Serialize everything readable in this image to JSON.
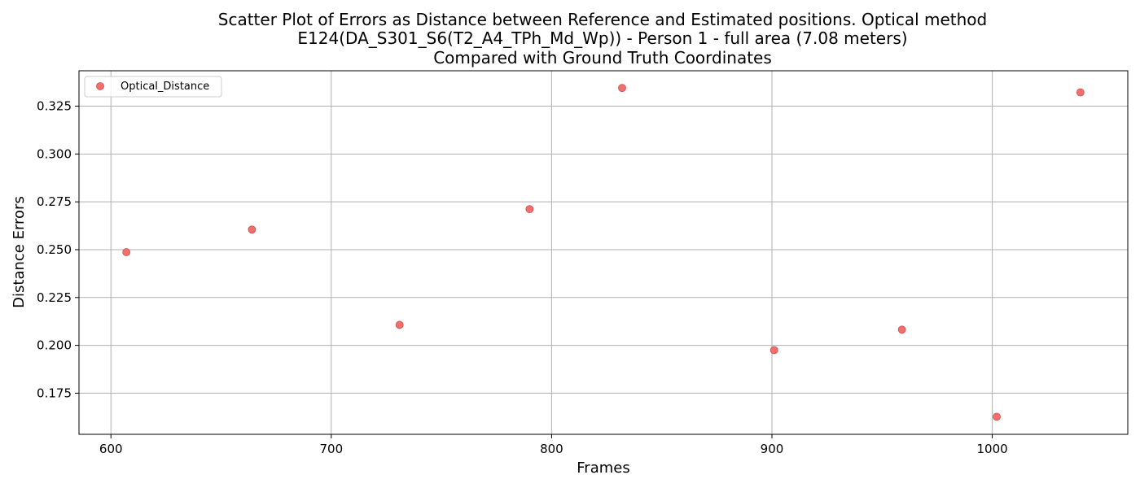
{
  "chart_data": {
    "type": "scatter",
    "title_lines": [
      "Scatter Plot of Errors as Distance between Reference and Estimated positions. Optical method",
      "E124(DA_S301_S6(T2_A4_TPh_Md_Wp)) - Person 1 - full area (7.08 meters)",
      "Compared with Ground Truth Coordinates"
    ],
    "xlabel": "Frames",
    "ylabel": "Distance Errors",
    "xlim": [
      585.5,
      1061.5
    ],
    "ylim": [
      0.1535,
      0.3435
    ],
    "x_ticks": [
      600,
      700,
      800,
      900,
      1000
    ],
    "x_tick_labels": [
      "600",
      "700",
      "800",
      "900",
      "1000"
    ],
    "y_ticks": [
      0.175,
      0.2,
      0.225,
      0.25,
      0.275,
      0.3,
      0.325
    ],
    "y_tick_labels": [
      "0.175",
      "0.200",
      "0.225",
      "0.250",
      "0.275",
      "0.300",
      "0.325"
    ],
    "grid": true,
    "legend_position": "top-left",
    "series": [
      {
        "name": "Optical_Distance",
        "color": "#f07070",
        "edge_color": "#d94a4a",
        "x": [
          607,
          664,
          731,
          790,
          832,
          901,
          959,
          1002,
          1040
        ],
        "y": [
          0.2487,
          0.2605,
          0.2107,
          0.2712,
          0.3345,
          0.1975,
          0.2082,
          0.1627,
          0.3322
        ]
      }
    ]
  }
}
